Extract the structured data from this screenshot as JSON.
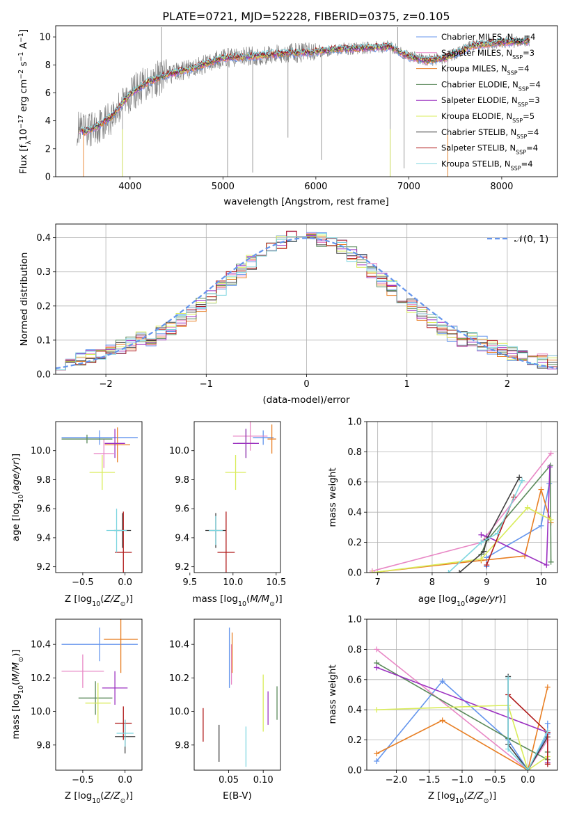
{
  "chart_data": [
    {
      "type": "line",
      "title": "PLATE=0721, MJD=52228, FIBERID=0375, z=0.105",
      "xlabel": "wavelength [Angstrom, rest frame]",
      "ylabel": "Flux [f_λ10^-17 erg cm^-2 s^-1 A^-1]",
      "xlim": [
        3200,
        8600
      ],
      "ylim": [
        0,
        10.8
      ],
      "xticks": [
        "4000",
        "5000",
        "6000",
        "7000",
        "8000"
      ],
      "yticks": [
        "0",
        "2",
        "4",
        "6",
        "8",
        "10"
      ],
      "legend_position": "upper-right",
      "data_series": {
        "name": "",
        "color": "#808080"
      },
      "continuum_x": [
        3430,
        3500,
        3650,
        3800,
        4000,
        4200,
        4400,
        4700,
        5000,
        5300,
        5600,
        5900,
        6200,
        6500,
        6800,
        7000,
        7200,
        7400,
        7700,
        8000,
        8300
      ],
      "continuum_y": [
        3.5,
        3.2,
        3.6,
        4.3,
        5.9,
        6.8,
        7.3,
        7.8,
        8.5,
        8.6,
        8.8,
        8.9,
        9.1,
        9.2,
        9.3,
        8.6,
        8.3,
        8.5,
        9.4,
        9.6,
        9.7
      ],
      "series": [
        {
          "name": "Chabrier MILES",
          "n_ssp": "4",
          "color": "#6495ed"
        },
        {
          "name": "Salpeter MILES",
          "n_ssp": "3",
          "color": "#e887c5"
        },
        {
          "name": "Kroupa MILES",
          "n_ssp": "4",
          "color": "#e87f24"
        },
        {
          "name": "Chabrier ELODIE",
          "n_ssp": "4",
          "color": "#5b8a5b"
        },
        {
          "name": "Salpeter ELODIE",
          "n_ssp": "3",
          "color": "#9b30c0"
        },
        {
          "name": "Kroupa ELODIE",
          "n_ssp": "5",
          "color": "#d9ec5a"
        },
        {
          "name": "Chabrier STELIB",
          "n_ssp": "4",
          "color": "#404040"
        },
        {
          "name": "Salpeter STELIB",
          "n_ssp": "4",
          "color": "#b01b1b"
        },
        {
          "name": "Kroupa STELIB",
          "n_ssp": "4",
          "color": "#7fd6e0"
        }
      ]
    },
    {
      "type": "line",
      "xlabel": "(data-model)/error",
      "ylabel": "Normed distribution",
      "xlim": [
        -2.5,
        2.5
      ],
      "ylim": [
        0,
        0.44
      ],
      "xticks": [
        "−2",
        "−1",
        "0",
        "1",
        "2"
      ],
      "yticks": [
        "0.0",
        "0.1",
        "0.2",
        "0.3",
        "0.4"
      ],
      "grid": true,
      "legend": "𝒩(0, 1)",
      "legend_position": "upper-right",
      "gaussian_color": "#6495ed",
      "bins": 50
    },
    {
      "type": "scatter",
      "xlabel": "Z [log10(Z/Z⊙)]",
      "ylabel": "age  [log10(age/yr)]",
      "xlim": [
        -0.82,
        0.2
      ],
      "ylim": [
        9.16,
        10.2
      ],
      "xticks": [
        "−0.5",
        "0.0"
      ],
      "yticks": [
        "9.2",
        "9.4",
        "9.6",
        "9.8",
        "10.0"
      ],
      "points": [
        {
          "x": -0.3,
          "y": 10.09,
          "xerr": 0.45,
          "yerr": 0.05,
          "color": "#6495ed"
        },
        {
          "x": -0.25,
          "y": 9.98,
          "xerr": 0.12,
          "yerr": 0.1,
          "color": "#e887c5"
        },
        {
          "x": -0.09,
          "y": 10.04,
          "xerr": 0.15,
          "yerr": 0.12,
          "color": "#e87f24"
        },
        {
          "x": -0.45,
          "y": 10.08,
          "xerr": 0.3,
          "yerr": 0.03,
          "color": "#5b8a5b"
        },
        {
          "x": -0.12,
          "y": 10.05,
          "xerr": 0.12,
          "yerr": 0.1,
          "color": "#9b30c0"
        },
        {
          "x": -0.27,
          "y": 9.85,
          "xerr": 0.15,
          "yerr": 0.12,
          "color": "#d9ec5a"
        },
        {
          "x": -0.03,
          "y": 9.45,
          "xerr": 0.1,
          "yerr": 0.12,
          "color": "#404040"
        },
        {
          "x": -0.02,
          "y": 9.3,
          "xerr": 0.1,
          "yerr": 0.28,
          "color": "#b01b1b"
        },
        {
          "x": -0.1,
          "y": 9.45,
          "xerr": 0.12,
          "yerr": 0.15,
          "color": "#7fd6e0"
        }
      ]
    },
    {
      "type": "scatter",
      "xlabel": "mass [log10(M/M⊙)]",
      "xlim": [
        9.55,
        10.55
      ],
      "ylim": [
        9.16,
        10.2
      ],
      "xticks": [
        "9.5",
        "10.0",
        "10.5"
      ],
      "yticks": [
        "9.2",
        "9.4",
        "9.6",
        "9.8",
        "10.0"
      ],
      "points": [
        {
          "x": 10.35,
          "y": 10.09,
          "xerr": 0.12,
          "yerr": 0.05,
          "color": "#6495ed"
        },
        {
          "x": 10.2,
          "y": 10.1,
          "xerr": 0.2,
          "yerr": 0.1,
          "color": "#e887c5"
        },
        {
          "x": 10.45,
          "y": 10.08,
          "xerr": 0.05,
          "yerr": 0.1,
          "color": "#e87f24"
        },
        {
          "x": 10.15,
          "y": 10.05,
          "xerr": 0.1,
          "yerr": 0.1,
          "color": "#5b8a5b"
        },
        {
          "x": 10.15,
          "y": 10.05,
          "xerr": 0.15,
          "yerr": 0.1,
          "color": "#9b30c0"
        },
        {
          "x": 10.03,
          "y": 9.85,
          "xerr": 0.12,
          "yerr": 0.12,
          "color": "#d9ec5a"
        },
        {
          "x": 9.8,
          "y": 9.45,
          "xerr": 0.12,
          "yerr": 0.12,
          "color": "#404040"
        },
        {
          "x": 9.92,
          "y": 9.3,
          "xerr": 0.1,
          "yerr": 0.28,
          "color": "#b01b1b"
        },
        {
          "x": 9.8,
          "y": 9.45,
          "xerr": 0.08,
          "yerr": 0.1,
          "color": "#7fd6e0"
        }
      ]
    },
    {
      "type": "line",
      "xlabel": "age  [log10(age/yr)]",
      "ylabel": "mass weight",
      "xlim": [
        6.8,
        10.3
      ],
      "ylim": [
        0,
        1
      ],
      "xticks": [
        "7",
        "8",
        "9",
        "10"
      ],
      "yticks": [
        "0.0",
        "0.2",
        "0.4",
        "0.6",
        "0.8",
        "1.0"
      ],
      "grid": true,
      "series": [
        {
          "color": "#6495ed",
          "x": [
            9.0,
            9.0,
            10.0,
            10.15
          ],
          "y": [
            0.04,
            0.1,
            0.31,
            0.59
          ]
        },
        {
          "color": "#e887c5",
          "x": [
            6.9,
            8.9,
            10.18
          ],
          "y": [
            0.01,
            0.2,
            0.79
          ]
        },
        {
          "color": "#e87f24",
          "x": [
            6.9,
            8.9,
            9.7,
            10.0,
            10.18
          ],
          "y": [
            0.0,
            0.08,
            0.11,
            0.55,
            0.33
          ]
        },
        {
          "color": "#5b8a5b",
          "x": [
            8.9,
            9.0,
            10.17,
            10.18
          ],
          "y": [
            0.12,
            0.21,
            0.71,
            0.07
          ]
        },
        {
          "color": "#9b30c0",
          "x": [
            8.9,
            9.0,
            10.1,
            10.16
          ],
          "y": [
            0.25,
            0.24,
            0.05,
            0.7
          ]
        },
        {
          "color": "#d9ec5a",
          "x": [
            6.9,
            8.9,
            9.75,
            10.18
          ],
          "y": [
            0.0,
            0.09,
            0.43,
            0.35
          ]
        },
        {
          "color": "#404040",
          "x": [
            8.5,
            8.95,
            9.0,
            9.6
          ],
          "y": [
            0.0,
            0.14,
            0.22,
            0.63
          ]
        },
        {
          "color": "#b01b1b",
          "x": [
            9.0,
            9.5
          ],
          "y": [
            0.05,
            0.5
          ]
        },
        {
          "color": "#7fd6e0",
          "x": [
            8.3,
            8.9,
            9.2,
            9.65
          ],
          "y": [
            0.0,
            0.2,
            0.26,
            0.61
          ]
        }
      ]
    },
    {
      "type": "scatter",
      "xlabel": "Z [log10(Z/Z⊙)]",
      "ylabel": "mass [log10(M/M⊙)]",
      "xlim": [
        -0.82,
        0.2
      ],
      "ylim": [
        9.65,
        10.55
      ],
      "xticks": [
        "−0.5",
        "0.0"
      ],
      "yticks": [
        "9.8",
        "10.0",
        "10.2",
        "10.4"
      ],
      "points": [
        {
          "x": -0.3,
          "y": 10.4,
          "xerr": 0.45,
          "yerr": 0.1,
          "color": "#6495ed"
        },
        {
          "x": -0.5,
          "y": 10.24,
          "xerr": 0.25,
          "yerr": 0.1,
          "color": "#e887c5"
        },
        {
          "x": -0.05,
          "y": 10.43,
          "xerr": 0.2,
          "yerr": 0.2,
          "color": "#e87f24"
        },
        {
          "x": -0.35,
          "y": 10.08,
          "xerr": 0.2,
          "yerr": 0.1,
          "color": "#5b8a5b"
        },
        {
          "x": -0.12,
          "y": 10.14,
          "xerr": 0.15,
          "yerr": 0.1,
          "color": "#9b30c0"
        },
        {
          "x": -0.32,
          "y": 10.05,
          "xerr": 0.15,
          "yerr": 0.12,
          "color": "#d9ec5a"
        },
        {
          "x": 0.0,
          "y": 9.85,
          "xerr": 0.12,
          "yerr": 0.1,
          "color": "#404040"
        },
        {
          "x": -0.02,
          "y": 9.93,
          "xerr": 0.1,
          "yerr": 0.1,
          "color": "#b01b1b"
        },
        {
          "x": 0.0,
          "y": 9.87,
          "xerr": 0.1,
          "yerr": 0.08,
          "color": "#7fd6e0"
        }
      ]
    },
    {
      "type": "scatter",
      "xlabel": "E(B-V)",
      "xlim": [
        0.0,
        0.125
      ],
      "ylim": [
        9.65,
        10.55
      ],
      "xticks": [
        "0.05",
        "0.10"
      ],
      "yticks": [
        "9.8",
        "10.0",
        "10.2",
        "10.4"
      ],
      "points": [
        {
          "x": 0.051,
          "y": 10.32,
          "yerr": 0.18,
          "color": "#6495ed"
        },
        {
          "x": 0.054,
          "y": 10.28,
          "yerr": 0.12,
          "color": "#e887c5"
        },
        {
          "x": 0.055,
          "y": 10.35,
          "yerr": 0.12,
          "color": "#e87f24"
        },
        {
          "x": 0.12,
          "y": 10.05,
          "yerr": 0.1,
          "color": "#5b8a5b"
        },
        {
          "x": 0.107,
          "y": 10.02,
          "yerr": 0.1,
          "color": "#9b30c0"
        },
        {
          "x": 0.1,
          "y": 10.05,
          "yerr": 0.17,
          "color": "#d9ec5a"
        },
        {
          "x": 0.036,
          "y": 9.81,
          "yerr": 0.11,
          "color": "#404040"
        },
        {
          "x": 0.013,
          "y": 9.92,
          "yerr": 0.1,
          "color": "#b01b1b"
        },
        {
          "x": 0.075,
          "y": 9.79,
          "yerr": 0.12,
          "color": "#7fd6e0"
        }
      ]
    },
    {
      "type": "line",
      "xlabel": "Z [log10(Z/Z⊙)]",
      "ylabel": "mass weight",
      "xlim": [
        -2.45,
        0.45
      ],
      "ylim": [
        0,
        1
      ],
      "xticks": [
        "−2.0",
        "−1.5",
        "−1.0",
        "−0.5",
        "0.0"
      ],
      "yticks": [
        "0.0",
        "0.2",
        "0.4",
        "0.6",
        "0.8",
        "1.0"
      ],
      "grid": true,
      "series": [
        {
          "color": "#6495ed",
          "x": [
            -2.3,
            -1.3,
            -0.3,
            0.0,
            0.3,
            0.3
          ],
          "y": [
            0.06,
            0.59,
            0.2,
            0.0,
            0.24,
            0.31
          ]
        },
        {
          "color": "#e887c5",
          "x": [
            -2.3,
            0.0,
            0.3
          ],
          "y": [
            0.8,
            0.0,
            0.2
          ]
        },
        {
          "color": "#e87f24",
          "x": [
            -2.3,
            -1.3,
            0.0,
            0.3
          ],
          "y": [
            0.11,
            0.33,
            0.0,
            0.55
          ]
        },
        {
          "color": "#5b8a5b",
          "x": [
            -2.3,
            -0.3,
            0.3,
            0.3
          ],
          "y": [
            0.71,
            0.21,
            0.07,
            0.12
          ]
        },
        {
          "color": "#9b30c0",
          "x": [
            -2.3,
            0.3,
            0.3
          ],
          "y": [
            0.68,
            0.25,
            0.05
          ]
        },
        {
          "color": "#d9ec5a",
          "x": [
            -2.3,
            -0.3,
            0.0,
            0.3
          ],
          "y": [
            0.4,
            0.43,
            0.0,
            0.09
          ]
        },
        {
          "color": "#404040",
          "x": [
            -0.3,
            -0.3,
            0.0,
            0.3
          ],
          "y": [
            0.62,
            0.17,
            0.0,
            0.22
          ]
        },
        {
          "color": "#b01b1b",
          "x": [
            -0.3,
            0.3,
            0.3
          ],
          "y": [
            0.5,
            0.25,
            0.04
          ]
        },
        {
          "color": "#7fd6e0",
          "x": [
            -0.3,
            -0.3,
            0.0,
            0.3
          ],
          "y": [
            0.61,
            0.14,
            0.0,
            0.26
          ]
        }
      ]
    }
  ]
}
